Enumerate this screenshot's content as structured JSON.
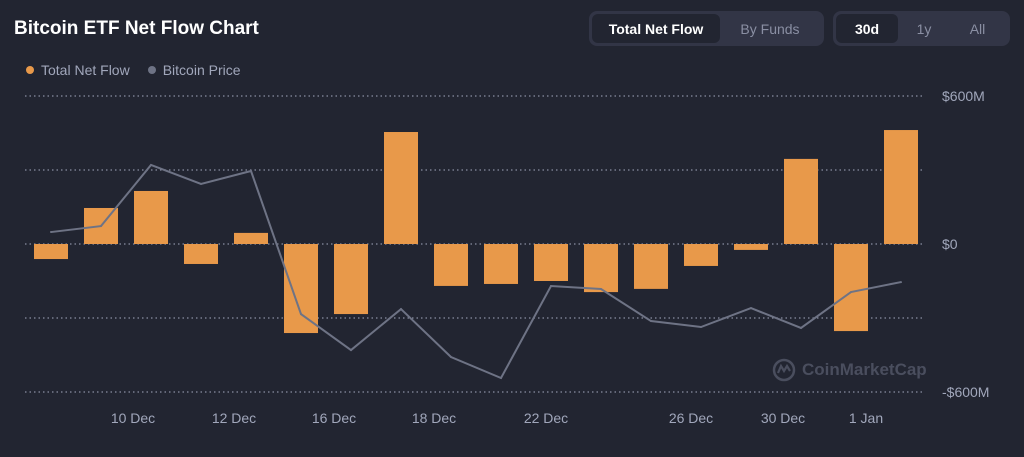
{
  "title": "Bitcoin ETF Net Flow Chart",
  "view_toggle": {
    "options": [
      "Total Net Flow",
      "By Funds"
    ],
    "selected": "Total Net Flow"
  },
  "range_toggle": {
    "options": [
      "30d",
      "1y",
      "All"
    ],
    "selected": "30d"
  },
  "watermark": "CoinMarketCap",
  "colors": {
    "background": "#222531",
    "net_flow": "#e8994a",
    "price": "#6e7385",
    "grid": "#8a8fa3"
  },
  "chart_data": {
    "type": "bar",
    "title": "Bitcoin ETF Net Flow Chart",
    "legend": {
      "position": "top-left",
      "entries": [
        "Total Net Flow",
        "Bitcoin Price"
      ]
    },
    "y_axis": {
      "ticks": [
        "$600M",
        "$0",
        "-$600M"
      ],
      "tick_values": [
        600,
        0,
        -600
      ],
      "unit": "$M",
      "ylim": [
        -600,
        600
      ],
      "grid": true,
      "position": "right"
    },
    "x_ticks": [
      {
        "label": "10 Dec",
        "at_index": 1.64
      },
      {
        "label": "12 Dec",
        "at_index": 3.66
      },
      {
        "label": "16 Dec",
        "at_index": 5.66
      },
      {
        "label": "18 Dec",
        "at_index": 7.66
      },
      {
        "label": "22 Dec",
        "at_index": 9.9
      },
      {
        "label": "26 Dec",
        "at_index": 12.8
      },
      {
        "label": "30 Dec",
        "at_index": 14.64
      },
      {
        "label": "1 Jan",
        "at_index": 16.3
      }
    ],
    "series": [
      {
        "name": "Total Net Flow",
        "type": "bar",
        "values": [
          -61,
          146,
          215,
          -81,
          45,
          -361,
          -284,
          454,
          -170,
          -162,
          -150,
          -195,
          -182,
          -89,
          -24,
          345,
          -353,
          462
        ]
      },
      {
        "name": "Bitcoin Price",
        "type": "line",
        "values": [
          101750,
          102130,
          106000,
          104800,
          105620,
          96550,
          94270,
          96870,
          93830,
          92500,
          98330,
          98140,
          96110,
          95730,
          96930,
          95670,
          97950,
          98580
        ]
      }
    ]
  }
}
